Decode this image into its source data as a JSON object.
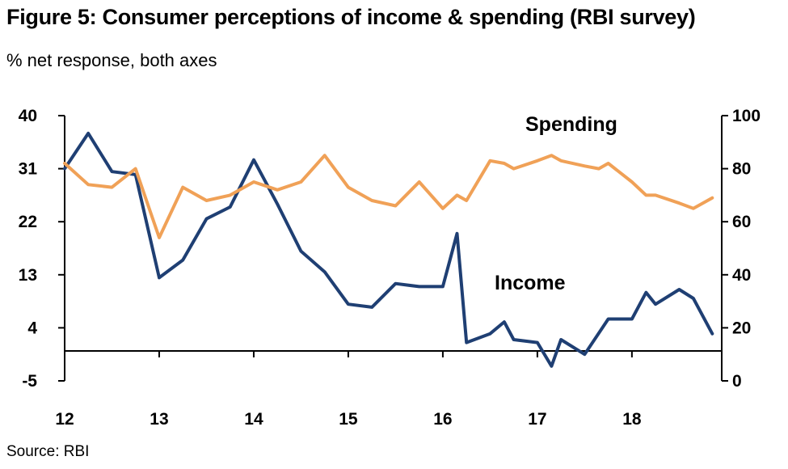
{
  "title": "Figure 5: Consumer perceptions of income & spending (RBI survey)",
  "subtitle": "% net response, both axes",
  "source": "Source: RBI",
  "colors": {
    "income": "#1f3f73",
    "spending": "#f0a157",
    "axis": "#000000"
  },
  "chart_data": {
    "type": "line",
    "title": "Figure 5: Consumer perceptions of income & spending (RBI survey)",
    "ylabel": "% net response",
    "x_tick_labels": [
      "12",
      "13",
      "14",
      "15",
      "16",
      "17",
      "18"
    ],
    "x_tick_positions": [
      12,
      13,
      14,
      15,
      16,
      17,
      18
    ],
    "xlim": [
      12,
      18.95
    ],
    "left_axis": {
      "ylim": [
        -5,
        40
      ],
      "ticks": [
        40,
        31,
        22,
        13,
        4,
        -5
      ]
    },
    "right_axis": {
      "ylim": [
        0,
        100
      ],
      "ticks": [
        100,
        80,
        60,
        40,
        20,
        0
      ]
    },
    "annotations": {
      "spending": "Spending",
      "income": "Income"
    },
    "series": [
      {
        "name": "Income",
        "axis": "left",
        "x": [
          12.0,
          12.25,
          12.5,
          12.75,
          13.0,
          13.25,
          13.5,
          13.75,
          14.0,
          14.25,
          14.5,
          14.75,
          15.0,
          15.25,
          15.5,
          15.75,
          16.0,
          16.15,
          16.25,
          16.5,
          16.65,
          16.75,
          17.0,
          17.15,
          17.25,
          17.5,
          17.75,
          18.0,
          18.15,
          18.25,
          18.5,
          18.65,
          18.85
        ],
        "values": [
          31.0,
          37.0,
          30.5,
          30.0,
          12.5,
          15.5,
          22.5,
          24.5,
          32.5,
          25.0,
          17.0,
          13.5,
          8.0,
          7.5,
          11.5,
          11.0,
          11.0,
          20.0,
          1.5,
          3.0,
          5.0,
          2.0,
          1.5,
          -2.5,
          2.0,
          -0.5,
          5.5,
          5.5,
          10.0,
          8.0,
          10.5,
          9.0,
          3.0
        ]
      },
      {
        "name": "Spending",
        "axis": "right",
        "x": [
          12.0,
          12.25,
          12.5,
          12.75,
          13.0,
          13.25,
          13.5,
          13.75,
          14.0,
          14.25,
          14.5,
          14.75,
          15.0,
          15.25,
          15.5,
          15.75,
          16.0,
          16.15,
          16.25,
          16.5,
          16.65,
          16.75,
          17.0,
          17.15,
          17.25,
          17.5,
          17.65,
          17.75,
          18.0,
          18.15,
          18.25,
          18.5,
          18.65,
          18.85
        ],
        "values": [
          82,
          74,
          73,
          80,
          54,
          73,
          68,
          70,
          75,
          72,
          75,
          85,
          73,
          68,
          66,
          75,
          65,
          70,
          68,
          83,
          82,
          80,
          83,
          85,
          83,
          81,
          80,
          82,
          75,
          70,
          70,
          67,
          65,
          69
        ]
      }
    ]
  }
}
